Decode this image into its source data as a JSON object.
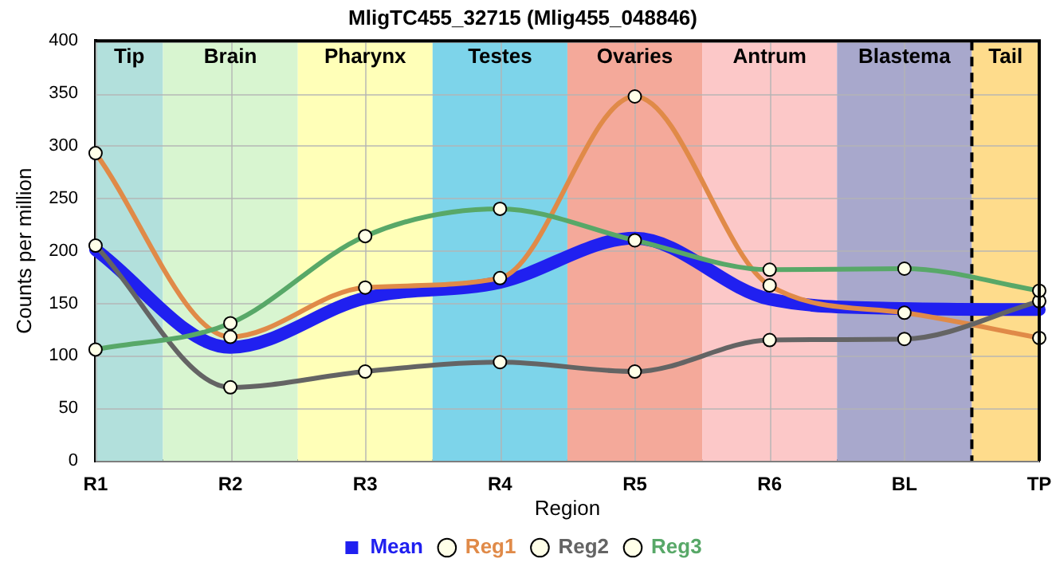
{
  "chart_data": {
    "type": "line",
    "title": "MligTC455_32715 (Mlig455_048846)",
    "xlabel": "Region",
    "ylabel": "Counts per million",
    "categories": [
      "R1",
      "R2",
      "R3",
      "R4",
      "R5",
      "R6",
      "BL",
      "TP"
    ],
    "series": [
      {
        "name": "Mean",
        "color": "#2020f0",
        "values": [
          201,
          108,
          155,
          170,
          212,
          154,
          145,
          144
        ],
        "marker": "none"
      },
      {
        "name": "Reg1",
        "color": "#e08a48",
        "values": [
          293,
          118,
          165,
          174,
          347,
          167,
          141,
          117
        ],
        "marker": "circle"
      },
      {
        "name": "Reg2",
        "color": "#646464",
        "values": [
          205,
          70,
          85,
          94,
          85,
          115,
          116,
          152
        ],
        "marker": "circle"
      },
      {
        "name": "Reg3",
        "color": "#58a868",
        "values": [
          106,
          131,
          214,
          240,
          210,
          182,
          183,
          162
        ],
        "marker": "circle"
      }
    ],
    "bands": [
      {
        "axis": "x",
        "from": "R1",
        "to": "R1",
        "label": "Tip",
        "color": "#b2e0dc"
      },
      {
        "axis": "x",
        "from": "R2",
        "to": "R2",
        "label": "Brain",
        "color": "#d8f5d0"
      },
      {
        "axis": "x",
        "from": "R3",
        "to": "R3",
        "label": "Pharynx",
        "color": "#ffffb8"
      },
      {
        "axis": "x",
        "from": "R4",
        "to": "R4",
        "label": "Testes",
        "color": "#7dd4ea"
      },
      {
        "axis": "x",
        "from": "R5",
        "to": "R5",
        "label": "Ovaries",
        "color": "#f4a99a"
      },
      {
        "axis": "x",
        "from": "R6",
        "to": "R6",
        "label": "Antrum",
        "color": "#fcc8c8"
      },
      {
        "axis": "x",
        "from": "BL",
        "to": "BL",
        "label": "Blastema",
        "color": "#a8a8cc"
      },
      {
        "axis": "x",
        "from": "TP",
        "to": "TP",
        "label": "Tail",
        "color": "#fedc8c"
      }
    ],
    "ref_lines": [
      {
        "axis": "x",
        "value": "TP",
        "line_style": "dashed",
        "color": "#000000"
      }
    ],
    "ylim": [
      0,
      400
    ],
    "yticks": [
      0,
      50,
      100,
      150,
      200,
      250,
      300,
      350,
      400
    ],
    "grid": true,
    "legend": "bottom"
  }
}
